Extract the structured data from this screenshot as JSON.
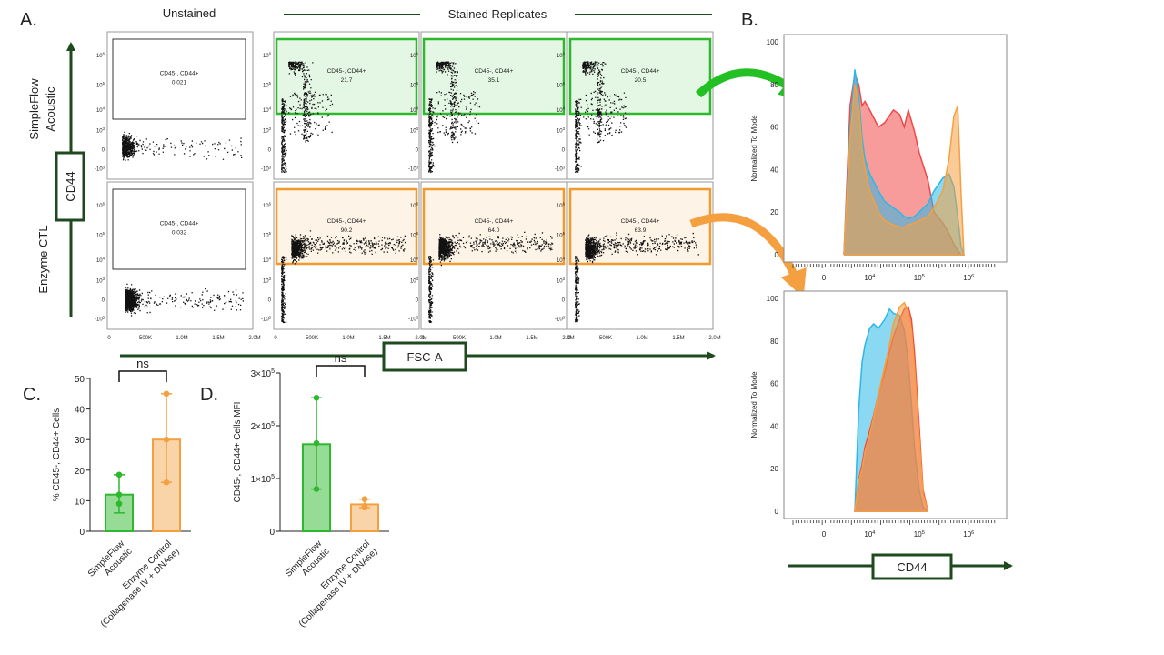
{
  "panel_labels": {
    "a": "A.",
    "b": "B.",
    "c": "C.",
    "d": "D."
  },
  "panel_a": {
    "unstained_title": "Unstained",
    "stained_title": "Stained Replicates",
    "row_labels": [
      [
        "SimpleFlow",
        "Acoustic"
      ],
      [
        "Enzyme CTL"
      ]
    ],
    "y_axis_box": "CD44",
    "x_axis_box": "FSC-A",
    "gate_label": "CD45-, CD44+",
    "x_ticks": [
      "0",
      "500K",
      "1.0M",
      "1.5M",
      "2.0M"
    ],
    "y_ticks": [
      "10^6",
      "10^5",
      "10^4",
      "10^3",
      "0",
      "-10^3"
    ],
    "gate_values": [
      [
        "0.021",
        "21.7",
        "35.1",
        "20.5"
      ],
      [
        "0.032",
        "90.2",
        "64.0",
        "63.9"
      ]
    ],
    "colors": {
      "acoustic": "#2eb82e",
      "enzyme": "#f29a2e",
      "axis": "#1e4a1e"
    }
  },
  "chart_data": [
    {
      "panel": "B-top",
      "type": "area",
      "ylabel": "Normalized To Mode",
      "xlabel": "CD44",
      "x_scale": "biexponential",
      "ylim": [
        0,
        100
      ],
      "y_ticks": [
        0,
        20,
        40,
        60,
        80,
        100
      ],
      "x_ticks": [
        "0",
        "10^4",
        "10^5",
        "10^6"
      ],
      "x": [
        3000,
        4000,
        5000,
        6000,
        7000,
        8000,
        10000,
        15000,
        20000,
        30000,
        40000,
        50000,
        60000,
        80000,
        100000,
        150000,
        200000,
        300000,
        400000,
        500000,
        600000,
        700000,
        800000
      ],
      "series": [
        {
          "color": "#f04848",
          "values": [
            0,
            70,
            85,
            80,
            70,
            72,
            68,
            60,
            62,
            68,
            66,
            60,
            68,
            58,
            48,
            35,
            20,
            15,
            10,
            5,
            2,
            0,
            0
          ]
        },
        {
          "color": "#2ab8e8",
          "values": [
            0,
            60,
            87,
            75,
            55,
            45,
            38,
            30,
            25,
            22,
            20,
            18,
            17,
            18,
            20,
            24,
            30,
            36,
            38,
            32,
            18,
            4,
            0
          ]
        },
        {
          "color": "#f5a040",
          "values": [
            0,
            55,
            80,
            70,
            50,
            40,
            30,
            20,
            16,
            14,
            13,
            13,
            14,
            15,
            16,
            18,
            22,
            30,
            45,
            65,
            70,
            30,
            0
          ]
        }
      ]
    },
    {
      "panel": "B-bottom",
      "type": "area",
      "ylabel": "Normalized To Mode",
      "xlabel": "CD44",
      "x_scale": "biexponential",
      "ylim": [
        0,
        100
      ],
      "y_ticks": [
        0,
        20,
        40,
        60,
        80,
        100
      ],
      "x_ticks": [
        "0",
        "10^4",
        "10^5",
        "10^6"
      ],
      "x": [
        5000,
        6000,
        7000,
        8000,
        10000,
        12000,
        15000,
        20000,
        25000,
        30000,
        40000,
        50000,
        60000,
        70000,
        80000,
        100000,
        120000,
        150000
      ],
      "series": [
        {
          "color": "#2ab8e8",
          "values": [
            0,
            48,
            70,
            78,
            86,
            88,
            86,
            90,
            95,
            93,
            92,
            85,
            70,
            50,
            30,
            10,
            2,
            0
          ]
        },
        {
          "color": "#f04848",
          "values": [
            0,
            15,
            22,
            30,
            38,
            45,
            55,
            65,
            75,
            82,
            90,
            95,
            96,
            90,
            75,
            40,
            10,
            0
          ]
        },
        {
          "color": "#f5a040",
          "values": [
            0,
            14,
            20,
            28,
            36,
            44,
            55,
            68,
            78,
            88,
            96,
            98,
            94,
            85,
            68,
            35,
            8,
            0
          ]
        }
      ]
    },
    {
      "panel": "C",
      "type": "bar",
      "ylabel": "% CD45-, CD44+ Cells",
      "ylim": [
        0,
        50
      ],
      "y_ticks": [
        0,
        10,
        20,
        30,
        40,
        50
      ],
      "categories": [
        [
          "SimpleFlow",
          "Acoustic"
        ],
        [
          "Enzyme Control",
          "(Collagenase IV + DNAse)"
        ]
      ],
      "values": [
        12,
        30
      ],
      "error_low": [
        6,
        16
      ],
      "error_high": [
        18.5,
        45
      ],
      "points": [
        [
          18.5,
          12,
          9
        ],
        [
          45,
          30,
          16
        ]
      ],
      "significance": "ns",
      "colors": [
        "#2eb82e",
        "#f5a040"
      ]
    },
    {
      "panel": "D",
      "type": "bar",
      "ylabel": "CD45-, CD44+ Cells MFI",
      "ylim": [
        0,
        300000
      ],
      "y_ticks": [
        "0",
        "1×10^5",
        "2×10^5",
        "3×10^5"
      ],
      "categories": [
        [
          "SimpleFlow",
          "Acoustic"
        ],
        [
          "Enzyme Control",
          "(Collagenase IV + DNAse)"
        ]
      ],
      "values": [
        165000,
        51000
      ],
      "error_low": [
        80000,
        45000
      ],
      "error_high": [
        253000,
        61000
      ],
      "points": [
        [
          253000,
          167000,
          80000
        ],
        [
          61000,
          48000,
          45000
        ]
      ],
      "significance": "ns",
      "colors": [
        "#2eb82e",
        "#f5a040"
      ]
    }
  ]
}
